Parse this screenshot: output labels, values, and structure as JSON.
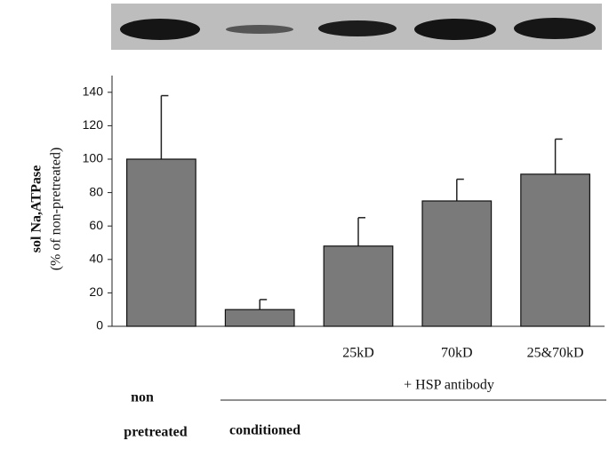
{
  "chart_data": {
    "type": "bar",
    "y_label": "sol Na,ATPase",
    "y_sublabel": "(% of non-pretreated)",
    "categories": [
      null,
      null,
      "25kD",
      "70kD",
      "25&70kD"
    ],
    "values": [
      100,
      10,
      48,
      75,
      91
    ],
    "errors": [
      38,
      6,
      17,
      13,
      21
    ],
    "color": "#7a7a7a",
    "ylim": [
      0,
      150
    ],
    "yticks": [
      0,
      20,
      40,
      60,
      80,
      100,
      120,
      140
    ],
    "group_label": "+ HSP antibody",
    "bottom_labels": [
      "non",
      "pretreated",
      "conditioned"
    ]
  }
}
